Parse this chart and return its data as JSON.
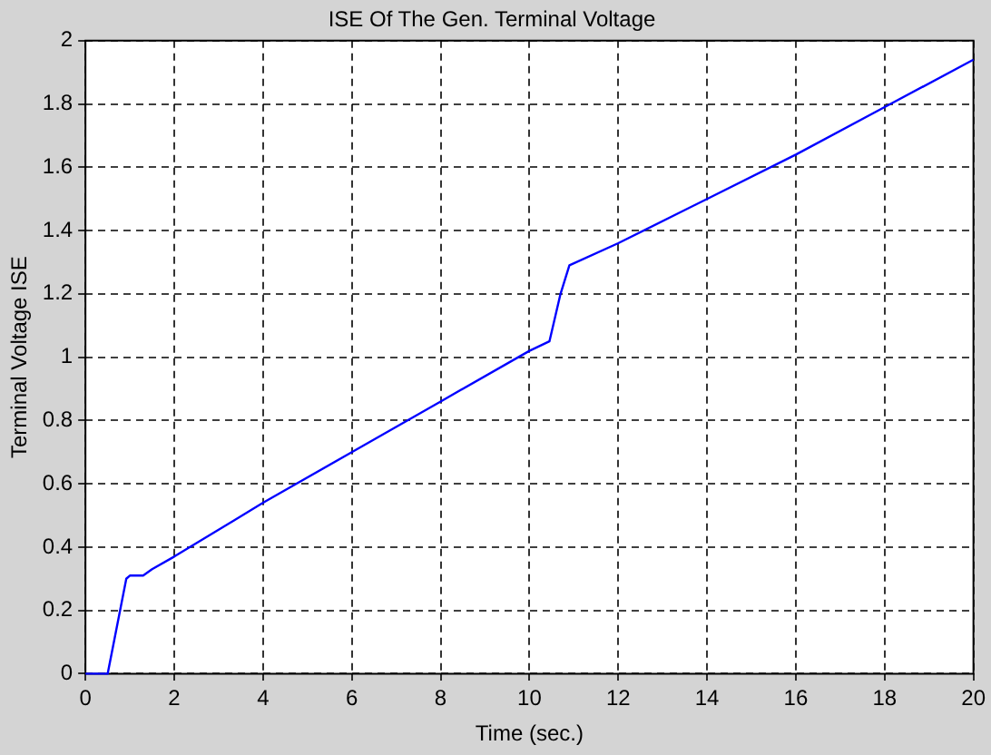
{
  "chart_data": {
    "type": "line",
    "title": "ISE Of The Gen. Terminal Voltage",
    "xlabel": "Time (sec.)",
    "ylabel": "Terminal Voltage ISE",
    "series": [
      {
        "color": "#0000ff",
        "x": [
          0,
          0.5,
          0.92,
          1.0,
          1.3,
          1.5,
          2,
          4,
          6,
          8,
          10,
          10.45,
          10.7,
          10.9,
          12,
          14,
          16,
          18,
          20
        ],
        "values": [
          0,
          0,
          0.3,
          0.31,
          0.31,
          0.33,
          0.37,
          0.54,
          0.7,
          0.86,
          1.02,
          1.05,
          1.2,
          1.29,
          1.36,
          1.5,
          1.64,
          1.79,
          1.94
        ]
      }
    ],
    "xlim": [
      0,
      20
    ],
    "xticks": [
      0,
      2,
      4,
      6,
      8,
      10,
      12,
      14,
      16,
      18,
      20
    ],
    "ylim": [
      0,
      2
    ],
    "yticks": [
      0,
      0.2,
      0.4,
      0.6,
      0.8,
      1,
      1.2,
      1.4,
      1.6,
      1.8,
      2
    ],
    "grid": true,
    "legend": false,
    "marker": "none",
    "line_style": "solid"
  }
}
